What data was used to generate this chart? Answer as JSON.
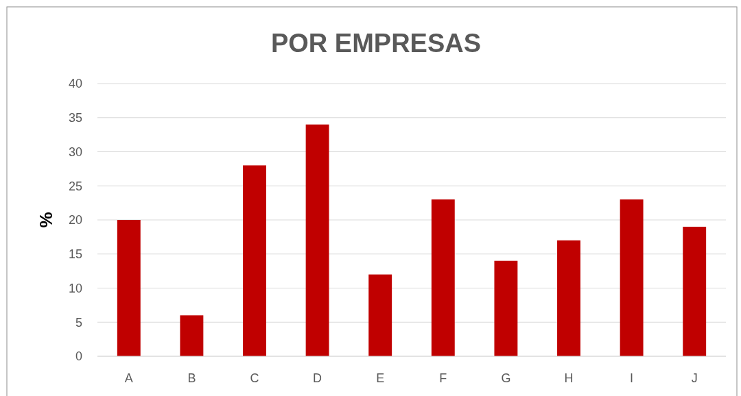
{
  "chart_data": {
    "type": "bar",
    "title": "POR EMPRESAS",
    "ylabel": "%",
    "categories": [
      "A",
      "B",
      "C",
      "D",
      "E",
      "F",
      "G",
      "H",
      "I",
      "J"
    ],
    "values": [
      20,
      6,
      28,
      34,
      12,
      23,
      14,
      17,
      23,
      19
    ],
    "color": "#c00000",
    "ylim": [
      0,
      40
    ],
    "yticks": [
      0,
      5,
      10,
      15,
      20,
      25,
      30,
      35,
      40
    ],
    "grid": "y"
  }
}
